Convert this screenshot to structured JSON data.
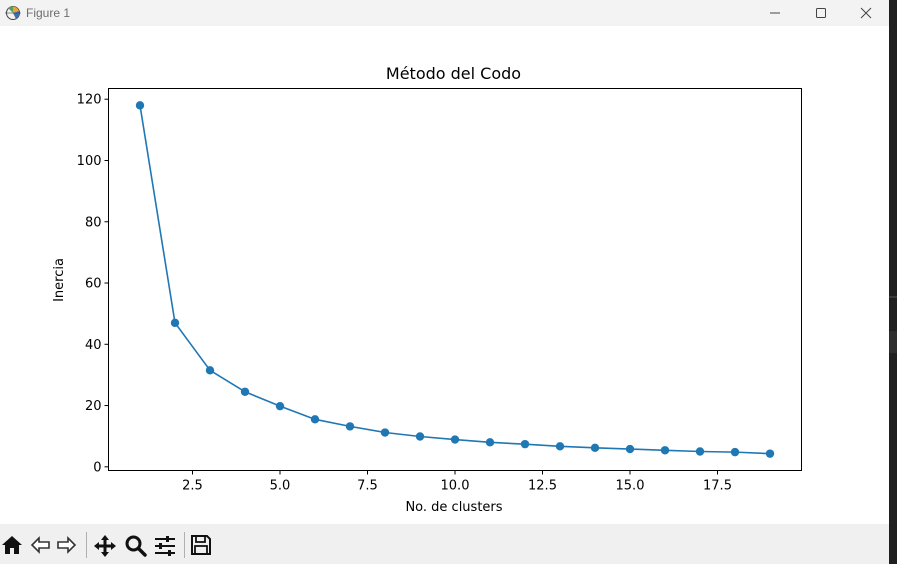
{
  "window": {
    "title": "Figure 1",
    "controls": [
      "minimize-icon",
      "maximize-icon",
      "close-icon"
    ]
  },
  "toolbar": {
    "buttons": [
      "home-icon",
      "back-icon",
      "forward-icon",
      "pan-icon",
      "zoom-icon",
      "configure-subplots-icon",
      "save-icon"
    ]
  },
  "chart_data": {
    "type": "line",
    "title": "Método del Codo",
    "xlabel": "No. de clusters",
    "ylabel": "Inercia",
    "x": [
      1,
      2,
      3,
      4,
      5,
      6,
      7,
      8,
      9,
      10,
      11,
      12,
      13,
      14,
      15,
      16,
      17,
      18,
      19
    ],
    "series": [
      {
        "values": [
          118,
          47,
          31.5,
          24.5,
          19.8,
          15.5,
          13.2,
          11.2,
          9.9,
          8.9,
          8.0,
          7.4,
          6.7,
          6.2,
          5.8,
          5.4,
          5.0,
          4.8,
          4.3
        ],
        "color": "#1f77b4",
        "marker": "circle"
      }
    ],
    "xticks": [
      "2.5",
      "5.0",
      "7.5",
      "10.0",
      "12.5",
      "15.0",
      "17.5"
    ],
    "yticks": [
      "0",
      "20",
      "40",
      "60",
      "80",
      "100",
      "120"
    ],
    "xlim": [
      0.1,
      19.9
    ],
    "ylim": [
      -1.2,
      123.5
    ],
    "grid": false
  }
}
